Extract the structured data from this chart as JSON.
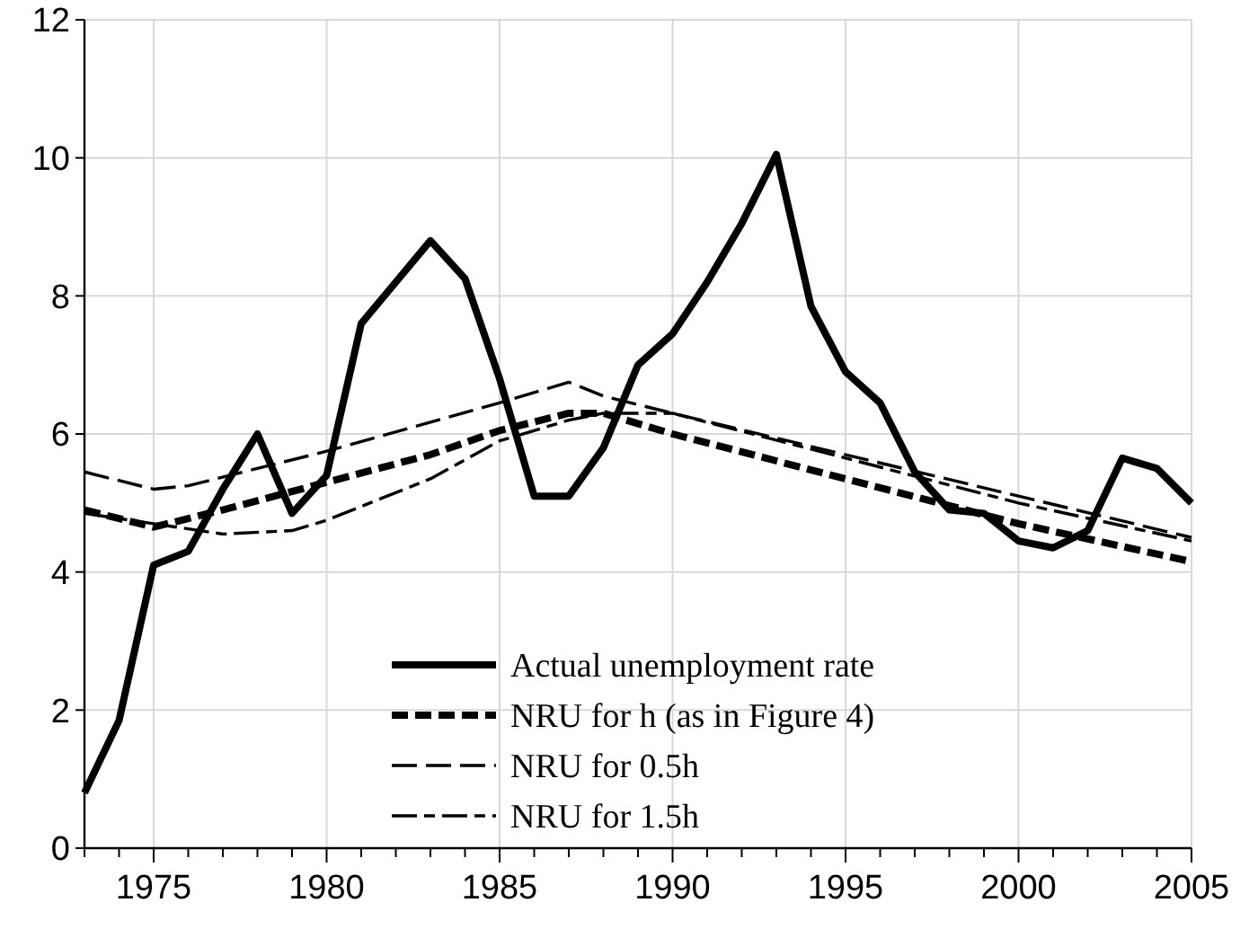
{
  "chart_data": {
    "type": "line",
    "x": [
      1973,
      1974,
      1975,
      1976,
      1977,
      1978,
      1979,
      1980,
      1981,
      1982,
      1983,
      1984,
      1985,
      1986,
      1987,
      1988,
      1989,
      1990,
      1991,
      1992,
      1993,
      1994,
      1995,
      1996,
      1997,
      1998,
      1999,
      2000,
      2001,
      2002,
      2003,
      2004,
      2005
    ],
    "series": [
      {
        "name": "Actual unemployment rate",
        "color": "#000000",
        "line_style": "solid",
        "values": [
          0.8,
          1.85,
          4.1,
          4.3,
          5.2,
          6.0,
          4.85,
          5.4,
          7.6,
          8.2,
          8.8,
          8.25,
          6.8,
          5.1,
          5.1,
          5.8,
          7.0,
          7.45,
          8.2,
          9.05,
          10.05,
          7.85,
          6.9,
          6.45,
          5.45,
          4.9,
          4.85,
          4.45,
          4.35,
          4.6,
          5.65,
          5.5,
          5.0
        ]
      },
      {
        "name": "NRU for h (as in Figure 4)",
        "color": "#000000",
        "line_style": "dashed",
        "x": [
          1973,
          1975,
          1977,
          1980,
          1983,
          1985,
          1987,
          1988,
          1990,
          1995,
          2000,
          2005
        ],
        "values": [
          4.9,
          4.65,
          4.9,
          5.3,
          5.7,
          6.05,
          6.3,
          6.3,
          6.0,
          5.35,
          4.7,
          4.15
        ]
      },
      {
        "name": "NRU for 0.5h",
        "color": "#000000",
        "line_style": "dashed",
        "x": [
          1973,
          1975,
          1976,
          1980,
          1985,
          1987,
          1988,
          1990,
          1995,
          2000,
          2005
        ],
        "values": [
          5.45,
          5.2,
          5.25,
          5.75,
          6.45,
          6.75,
          6.55,
          6.3,
          5.7,
          5.1,
          4.5
        ]
      },
      {
        "name": "NRU for 1.5h",
        "color": "#000000",
        "line_style": "dashed",
        "x": [
          1973,
          1975,
          1977,
          1979,
          1980,
          1983,
          1985,
          1987,
          1988,
          1990,
          1995,
          2000,
          2005
        ],
        "values": [
          4.85,
          4.7,
          4.55,
          4.6,
          4.75,
          5.35,
          5.9,
          6.2,
          6.3,
          6.3,
          5.65,
          5.0,
          4.45
        ]
      }
    ],
    "xlim": [
      1973,
      2005
    ],
    "xticks": [
      {
        "value": 1973,
        "label": null
      },
      {
        "value": 1974,
        "label": null
      },
      1975,
      {
        "value": 1976,
        "label": null
      },
      {
        "value": 1977,
        "label": null
      },
      {
        "value": 1978,
        "label": null
      },
      {
        "value": 1979,
        "label": null
      },
      1980,
      {
        "value": 1981,
        "label": null
      },
      {
        "value": 1982,
        "label": null
      },
      {
        "value": 1983,
        "label": null
      },
      {
        "value": 1984,
        "label": null
      },
      1985,
      {
        "value": 1986,
        "label": null
      },
      {
        "value": 1987,
        "label": null
      },
      {
        "value": 1988,
        "label": null
      },
      {
        "value": 1989,
        "label": null
      },
      1990,
      {
        "value": 1991,
        "label": null
      },
      {
        "value": 1992,
        "label": null
      },
      {
        "value": 1993,
        "label": null
      },
      {
        "value": 1994,
        "label": null
      },
      1995,
      {
        "value": 1996,
        "label": null
      },
      {
        "value": 1997,
        "label": null
      },
      {
        "value": 1998,
        "label": null
      },
      {
        "value": 1999,
        "label": null
      },
      2000,
      {
        "value": 2001,
        "label": null
      },
      {
        "value": 2002,
        "label": null
      },
      {
        "value": 2003,
        "label": null
      },
      {
        "value": 2004,
        "label": null
      },
      2005
    ],
    "ylim": [
      0,
      12
    ],
    "yticks": [
      0,
      2,
      4,
      6,
      8,
      10,
      12
    ],
    "grid": true,
    "legend": "bottom right",
    "marker": "none"
  }
}
